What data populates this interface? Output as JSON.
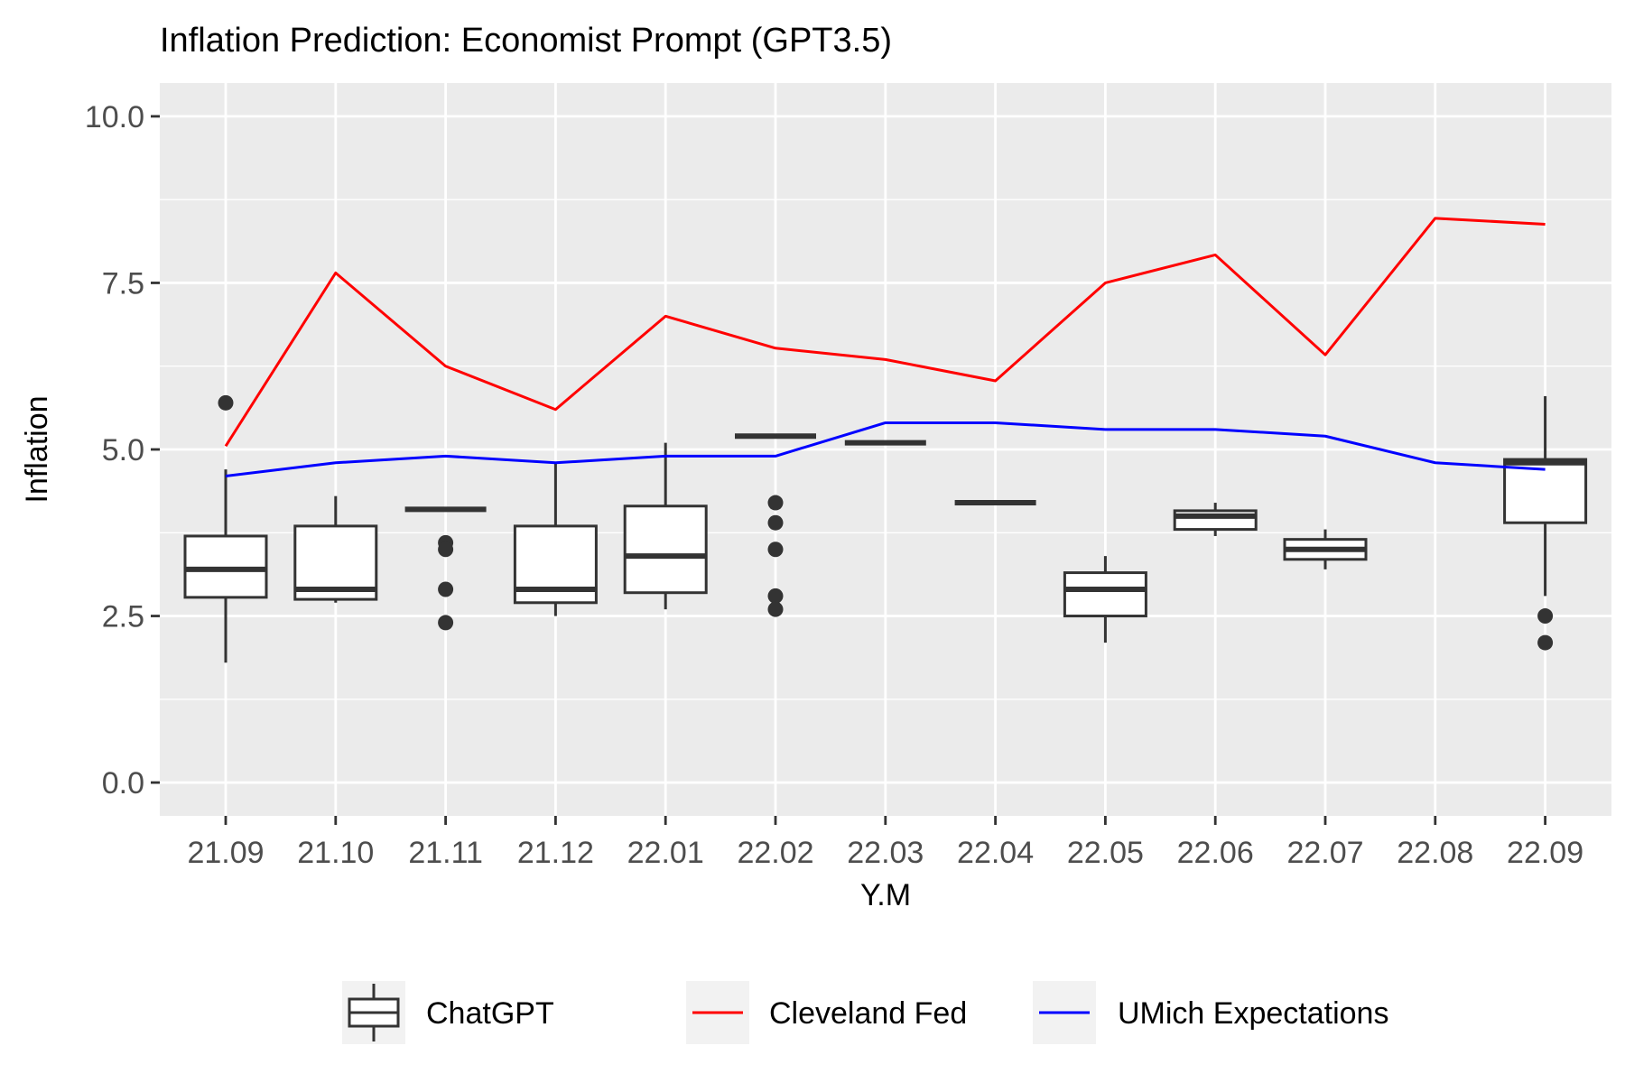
{
  "chart_data": {
    "type": "box+line",
    "title": "Inflation Prediction: Economist Prompt (GPT3.5)",
    "xlabel": "Y.M",
    "ylabel": "Inflation",
    "ylim": [
      -0.5,
      10.5
    ],
    "yticks": [
      0.0,
      2.5,
      5.0,
      7.5,
      10.0
    ],
    "ytick_labels": [
      "0.0",
      "2.5",
      "5.0",
      "7.5",
      "10.0"
    ],
    "grid": true,
    "legend_position": "bottom",
    "categories": [
      "21.09",
      "21.10",
      "21.11",
      "21.12",
      "22.01",
      "22.02",
      "22.03",
      "22.04",
      "22.05",
      "22.06",
      "22.07",
      "22.08",
      "22.09"
    ],
    "boxes": [
      {
        "category": "21.09",
        "whisker_low": 1.8,
        "q1": 2.78,
        "median": 3.2,
        "q3": 3.7,
        "whisker_high": 4.7,
        "outliers": [
          5.7
        ]
      },
      {
        "category": "21.10",
        "whisker_low": 2.7,
        "q1": 2.75,
        "median": 2.9,
        "q3": 3.85,
        "whisker_high": 4.3,
        "outliers": []
      },
      {
        "category": "21.11",
        "whisker_low": 4.1,
        "q1": 4.1,
        "median": 4.1,
        "q3": 4.1,
        "whisker_high": 4.1,
        "outliers": [
          3.6,
          3.5,
          2.9,
          2.4
        ]
      },
      {
        "category": "21.12",
        "whisker_low": 2.5,
        "q1": 2.7,
        "median": 2.9,
        "q3": 3.85,
        "whisker_high": 4.8,
        "outliers": []
      },
      {
        "category": "22.01",
        "whisker_low": 2.6,
        "q1": 2.85,
        "median": 3.4,
        "q3": 4.15,
        "whisker_high": 5.1,
        "outliers": []
      },
      {
        "category": "22.02",
        "whisker_low": 5.2,
        "q1": 5.2,
        "median": 5.2,
        "q3": 5.2,
        "whisker_high": 5.2,
        "outliers": [
          4.2,
          3.9,
          3.5,
          2.8,
          2.6
        ]
      },
      {
        "category": "22.03",
        "whisker_low": 5.1,
        "q1": 5.1,
        "median": 5.1,
        "q3": 5.1,
        "whisker_high": 5.1,
        "outliers": []
      },
      {
        "category": "22.04",
        "whisker_low": 4.2,
        "q1": 4.2,
        "median": 4.2,
        "q3": 4.2,
        "whisker_high": 4.2,
        "outliers": []
      },
      {
        "category": "22.05",
        "whisker_low": 2.1,
        "q1": 2.5,
        "median": 2.9,
        "q3": 3.15,
        "whisker_high": 3.4,
        "outliers": []
      },
      {
        "category": "22.06",
        "whisker_low": 3.7,
        "q1": 3.8,
        "median": 4.0,
        "q3": 4.08,
        "whisker_high": 4.2,
        "outliers": []
      },
      {
        "category": "22.07",
        "whisker_low": 3.2,
        "q1": 3.35,
        "median": 3.5,
        "q3": 3.65,
        "whisker_high": 3.8,
        "outliers": []
      },
      {
        "category": "22.08",
        "whisker_low": null,
        "q1": null,
        "median": null,
        "q3": null,
        "whisker_high": null,
        "outliers": []
      },
      {
        "category": "22.09",
        "whisker_low": 2.8,
        "q1": 3.9,
        "median": 4.8,
        "q3": 4.85,
        "whisker_high": 5.8,
        "outliers": [
          2.5,
          2.1
        ]
      }
    ],
    "series": [
      {
        "name": "Cleveland Fed",
        "color": "#ff0000",
        "values": [
          5.05,
          7.65,
          6.25,
          5.6,
          7.0,
          6.52,
          6.35,
          6.03,
          7.5,
          7.92,
          6.42,
          8.47,
          8.38
        ]
      },
      {
        "name": "UMich Expectations",
        "color": "#0000ff",
        "values": [
          4.6,
          4.8,
          4.9,
          4.8,
          4.9,
          4.9,
          5.4,
          5.4,
          5.3,
          5.3,
          5.2,
          4.8,
          4.7
        ]
      }
    ],
    "legend": [
      {
        "key": "box",
        "label": "ChatGPT"
      },
      {
        "key": "line",
        "label": "Cleveland Fed",
        "color": "#ff0000"
      },
      {
        "key": "line",
        "label": "UMich Expectations",
        "color": "#0000ff"
      }
    ]
  },
  "colors": {
    "panel_background": "#ebebeb",
    "grid": "#ffffff",
    "box_stroke": "#333333",
    "box_fill": "#ffffff",
    "legend_key_background": "#f2f2f2",
    "axis_text": "#4d4d4d"
  }
}
